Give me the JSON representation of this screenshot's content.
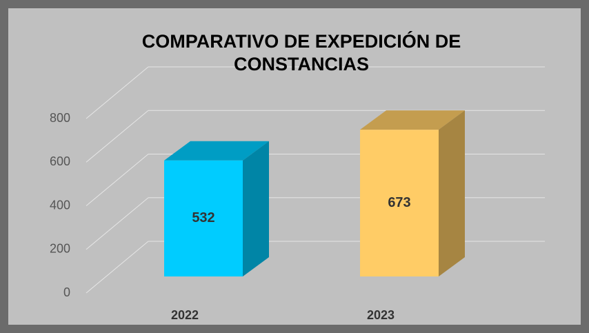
{
  "chart_data": {
    "type": "bar3d",
    "title": "COMPARATIVO DE EXPEDICIÓN DE CONSTANCIAS",
    "categories": [
      "2022",
      "2023"
    ],
    "values": [
      532,
      673
    ],
    "colors": [
      "#00ccff",
      "#ffcc66"
    ],
    "ylim": [
      0,
      800
    ],
    "yticks": [
      0,
      200,
      400,
      600,
      800
    ],
    "grid": true
  }
}
